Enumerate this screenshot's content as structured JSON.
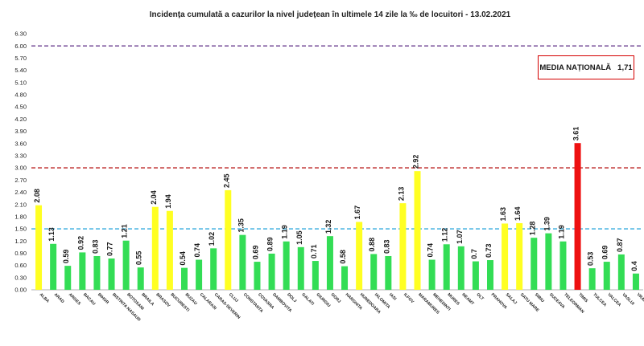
{
  "chart_data": {
    "type": "bar",
    "title": "Incidența cumulată a cazurilor la nivel județean în ultimele 14 zile la ‰ de locuitori - 13.02.2021",
    "xlabel": "",
    "ylabel": "",
    "ylim": [
      0,
      6.3
    ],
    "yticks": [
      "0.00",
      "0.30",
      "0.60",
      "0.90",
      "1.20",
      "1.50",
      "1.80",
      "2.10",
      "2.40",
      "2.70",
      "3.00",
      "3.30",
      "3.60",
      "3.90",
      "4.20",
      "4.50",
      "4.80",
      "5.10",
      "5.40",
      "5.70",
      "6.00",
      "6.30"
    ],
    "grid": false,
    "legend": "none",
    "colors": {
      "green": "#33dd55",
      "yellow": "#ffff22",
      "red": "#ee1111",
      "line_blue": "#33aadd",
      "line_red": "#bb2222",
      "line_purple": "#6a3d8f"
    },
    "reference_lines": [
      {
        "value": 1.5,
        "color": "#33aadd"
      },
      {
        "value": 3.0,
        "color": "#bb2222"
      },
      {
        "value": 6.0,
        "color": "#6a3d8f"
      }
    ],
    "categories": [
      "ALBA",
      "ARAD",
      "ARGES",
      "BACAU",
      "BIHOR",
      "BISTRITA NASAUD",
      "BOTOSANI",
      "BRAILA",
      "BRASOV",
      "BUCURESTI",
      "BUZAU",
      "CALARASI",
      "CARAS-SEVERIN",
      "CLUJ",
      "CONSTANTA",
      "COVASNA",
      "DAMBOVITA",
      "DOLJ",
      "GALATI",
      "GIURGIU",
      "GORJ",
      "HARGHITA",
      "HUNEDOARA",
      "IALOMITA",
      "IASI",
      "ILFOV",
      "MARAMURES",
      "MEHEDINTI",
      "MURES",
      "NEAMT",
      "OLT",
      "PRAHOVA",
      "SALAJ",
      "SATU MARE",
      "SIBIU",
      "SUCEAVA",
      "TELEORMAN",
      "TIMIS",
      "TULCEA",
      "VALCEA",
      "VASLUI",
      "VRANCEA"
    ],
    "values": [
      2.08,
      1.13,
      0.59,
      0.92,
      0.83,
      0.77,
      1.21,
      0.55,
      2.04,
      1.94,
      0.54,
      0.74,
      1.02,
      2.45,
      1.35,
      0.69,
      0.89,
      1.19,
      1.05,
      0.71,
      1.32,
      0.58,
      1.67,
      0.88,
      0.83,
      2.13,
      2.92,
      0.74,
      1.12,
      1.07,
      0.7,
      0.73,
      1.63,
      1.64,
      1.28,
      1.39,
      1.19,
      3.61,
      0.53,
      0.69,
      0.87,
      0.4
    ],
    "value_labels": [
      "2.08",
      "1.13",
      "0.59",
      "0.92",
      "0.83",
      "0.77",
      "1.21",
      "0.55",
      "2.04",
      "1.94",
      "0.54",
      "0.74",
      "1.02",
      "2.45",
      "1.35",
      "0.69",
      "0.89",
      "1.19",
      "1.05",
      "0.71",
      "1.32",
      "0.58",
      "1.67",
      "0.88",
      "0.83",
      "2.13",
      "2.92",
      "0.74",
      "1.12",
      "1.07",
      "0.7",
      "0.73",
      "1.63",
      "1.64",
      "1.28",
      "1.39",
      "1.19",
      "3.61",
      "0.53",
      "0.69",
      "0.87",
      "0.4"
    ],
    "bar_colors": [
      "yellow",
      "green",
      "green",
      "green",
      "green",
      "green",
      "green",
      "green",
      "yellow",
      "yellow",
      "green",
      "green",
      "green",
      "yellow",
      "green",
      "green",
      "green",
      "green",
      "green",
      "green",
      "green",
      "green",
      "yellow",
      "green",
      "green",
      "yellow",
      "yellow",
      "green",
      "green",
      "green",
      "green",
      "green",
      "yellow",
      "yellow",
      "green",
      "green",
      "green",
      "red",
      "green",
      "green",
      "green",
      "green"
    ]
  },
  "annotation": {
    "label": "MEDIA NAȚIONALĂ",
    "value": "1,71"
  }
}
